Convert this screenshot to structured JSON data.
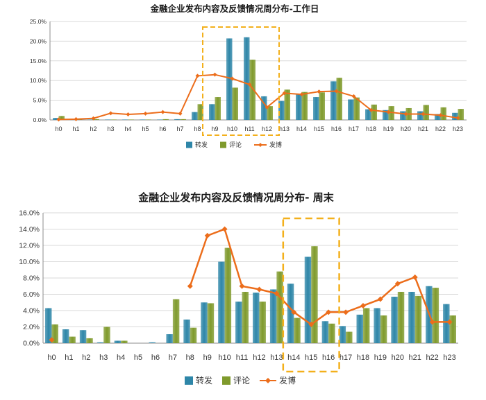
{
  "colors": {
    "repost": "#2e86a8",
    "comment": "#7f9a2c",
    "post": "#ec6d1b",
    "highlight": "#f3b01c",
    "grid": "#d9d9d9",
    "axis": "#8c8c8c"
  },
  "chart_data": [
    {
      "type": "bar",
      "title": "金融企业发布内容及反馈情况周分布-工作日",
      "categories": [
        "h0",
        "h1",
        "h2",
        "h3",
        "h4",
        "h5",
        "h6",
        "h7",
        "h8",
        "h9",
        "h10",
        "h11",
        "h12",
        "h13",
        "h14",
        "h15",
        "h16",
        "h17",
        "h18",
        "h19",
        "h20",
        "h21",
        "h22",
        "h23"
      ],
      "y_ticks": [
        "0.0%",
        "5.0%",
        "10.0%",
        "15.0%",
        "20.0%",
        "25.0%"
      ],
      "ylim": [
        0,
        25
      ],
      "grid": true,
      "legend_position": "bottom",
      "highlight_range": [
        "h9",
        "h12"
      ],
      "series": [
        {
          "name": "转发",
          "kind": "bar",
          "values": [
            0.5,
            0.1,
            0.1,
            0.1,
            0.1,
            0.1,
            0.1,
            0.2,
            2.0,
            4.0,
            20.7,
            21.0,
            6.0,
            4.8,
            6.5,
            5.8,
            9.8,
            5.2,
            2.7,
            2.5,
            2.2,
            2.2,
            1.5,
            1.8
          ]
        },
        {
          "name": "评论",
          "kind": "bar",
          "values": [
            1.0,
            0.1,
            0.2,
            0.1,
            0.1,
            0.1,
            0.2,
            0.2,
            4.0,
            5.8,
            8.2,
            15.3,
            3.5,
            7.7,
            7.1,
            7.0,
            10.7,
            5.7,
            3.9,
            3.5,
            3.0,
            3.8,
            3.2,
            2.8
          ]
        },
        {
          "name": "发博",
          "kind": "line",
          "values": [
            0.1,
            0.2,
            0.4,
            1.7,
            1.4,
            1.6,
            2.0,
            1.6,
            11.2,
            11.5,
            10.5,
            9.0,
            3.2,
            6.8,
            6.5,
            7.2,
            7.3,
            6.0,
            2.5,
            2.0,
            1.5,
            1.5,
            1.2,
            0.5
          ]
        }
      ]
    },
    {
      "type": "bar",
      "title": "金融企业发布内容及反馈情况周分布- 周末",
      "categories": [
        "h0",
        "h1",
        "h2",
        "h3",
        "h4",
        "h5",
        "h6",
        "h7",
        "h8",
        "h9",
        "h10",
        "h11",
        "h12",
        "h13",
        "h14",
        "h15",
        "h16",
        "h17",
        "h18",
        "h19",
        "h20",
        "h21",
        "h22",
        "h23"
      ],
      "y_ticks": [
        "0.0%",
        "2.0%",
        "4.0%",
        "6.0%",
        "8.0%",
        "10.0%",
        "12.0%",
        "14.0%",
        "16.0%"
      ],
      "ylim": [
        0,
        16
      ],
      "grid": true,
      "legend_position": "bottom",
      "highlight_range": [
        "h14",
        "h16"
      ],
      "series": [
        {
          "name": "转发",
          "kind": "bar",
          "values": [
            4.3,
            1.7,
            1.6,
            0.1,
            0.3,
            0,
            0.1,
            1.1,
            2.9,
            5.0,
            10.0,
            5.1,
            6.2,
            6.6,
            7.3,
            10.6,
            2.7,
            2.1,
            3.5,
            4.3,
            5.7,
            6.3,
            7.0,
            4.8
          ]
        },
        {
          "name": "评论",
          "kind": "bar",
          "values": [
            2.3,
            0.8,
            0.6,
            2.0,
            0.3,
            0,
            0,
            5.4,
            1.9,
            4.9,
            11.7,
            6.3,
            5.1,
            8.8,
            3.1,
            11.9,
            2.4,
            1.4,
            4.3,
            3.4,
            6.3,
            5.8,
            6.8,
            3.4
          ]
        },
        {
          "name": "发博",
          "kind": "line",
          "values": [
            0.4,
            null,
            null,
            null,
            null,
            null,
            null,
            null,
            7.0,
            13.2,
            14.0,
            7.0,
            6.6,
            6.1,
            3.8,
            2.3,
            3.8,
            3.8,
            4.6,
            5.4,
            7.3,
            8.1,
            2.6,
            2.6
          ]
        }
      ]
    }
  ]
}
